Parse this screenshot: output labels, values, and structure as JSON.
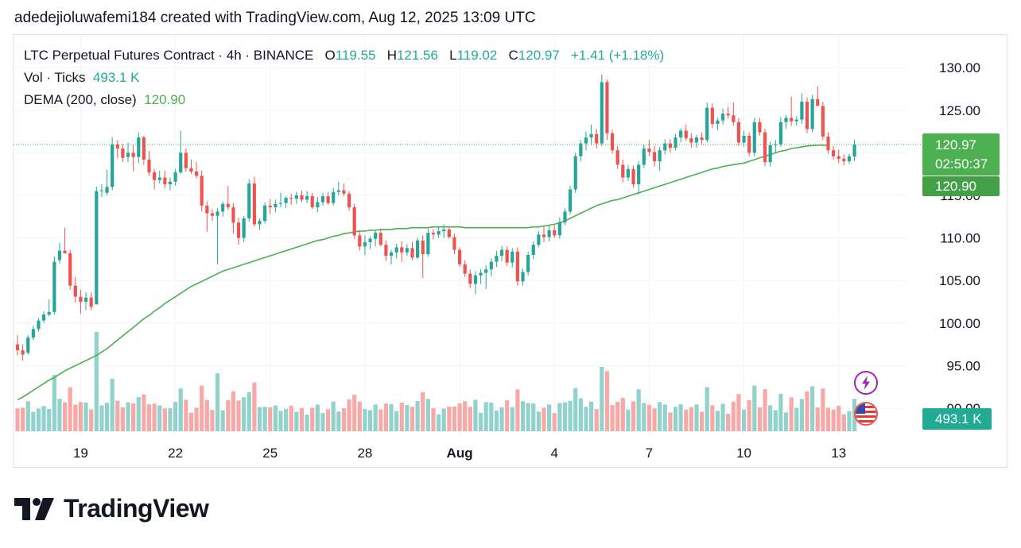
{
  "header": {
    "text": "adedejioluwafemi184 created with TradingView.com, Aug 12, 2025 13:09 UTC"
  },
  "legend": {
    "symbol": "LTC Perpetual Futures Contract · 4h · BINANCE",
    "open_label": "O",
    "open": "119.55",
    "high_label": "H",
    "high": "121.56",
    "low_label": "L",
    "low": "119.02",
    "close_label": "C",
    "close": "120.97",
    "change": "+1.41 (+1.18%)",
    "vol_label": "Vol · Ticks",
    "vol_value": "493.1 K",
    "dema_label": "DEMA (200, close)",
    "dema_value": "120.90"
  },
  "price_badges": {
    "last": "120.97",
    "countdown": "02:50:37",
    "dema": "120.90",
    "volume": "493.1 K"
  },
  "brand": {
    "name": "TradingView"
  },
  "colors": {
    "up": "#26a69a",
    "down": "#ef5350",
    "dema": "#4caf50",
    "vol_up": "#92d2cc",
    "vol_down": "#f7a9a7"
  },
  "chart_data": {
    "type": "candlestick",
    "y_ticks": [
      "130.00",
      "125.00",
      "120.00",
      "115.00",
      "110.00",
      "105.00",
      "100.00",
      "95.00",
      "90.00"
    ],
    "ylim": [
      88,
      133
    ],
    "x_ticks": [
      "19",
      "22",
      "25",
      "28",
      "Aug",
      "4",
      "7",
      "10",
      "13"
    ],
    "x_tick_index": [
      12,
      30,
      48,
      66,
      84,
      102,
      120,
      138,
      156
    ],
    "candles": [
      {
        "o": 97.5,
        "h": 98.6,
        "l": 96.2,
        "c": 96.8
      },
      {
        "o": 96.8,
        "h": 97.5,
        "l": 95.6,
        "c": 96.3
      },
      {
        "o": 96.5,
        "h": 98.6,
        "l": 96.3,
        "c": 98.3
      },
      {
        "o": 98.3,
        "h": 99.7,
        "l": 98.0,
        "c": 99.3
      },
      {
        "o": 99.3,
        "h": 100.6,
        "l": 99.0,
        "c": 100.3
      },
      {
        "o": 100.3,
        "h": 101.4,
        "l": 100.0,
        "c": 101.0
      },
      {
        "o": 101.0,
        "h": 102.8,
        "l": 100.8,
        "c": 101.3
      },
      {
        "o": 101.3,
        "h": 107.8,
        "l": 101.0,
        "c": 107.2
      },
      {
        "o": 107.4,
        "h": 109.4,
        "l": 107.0,
        "c": 108.5
      },
      {
        "o": 108.5,
        "h": 111.2,
        "l": 108.3,
        "c": 108.2
      },
      {
        "o": 108.2,
        "h": 108.6,
        "l": 103.9,
        "c": 104.4
      },
      {
        "o": 104.4,
        "h": 105.4,
        "l": 102.4,
        "c": 103.1
      },
      {
        "o": 103.1,
        "h": 103.9,
        "l": 101.1,
        "c": 102.5
      },
      {
        "o": 102.5,
        "h": 103.6,
        "l": 101.5,
        "c": 103.0
      },
      {
        "o": 103.0,
        "h": 103.6,
        "l": 101.5,
        "c": 101.9
      },
      {
        "o": 102.2,
        "h": 116.0,
        "l": 102.2,
        "c": 115.5
      },
      {
        "o": 115.5,
        "h": 116.3,
        "l": 114.8,
        "c": 115.6
      },
      {
        "o": 115.3,
        "h": 118.0,
        "l": 115.0,
        "c": 116.0
      },
      {
        "o": 116.0,
        "h": 121.8,
        "l": 115.6,
        "c": 121.0
      },
      {
        "o": 121.0,
        "h": 121.5,
        "l": 119.4,
        "c": 120.5
      },
      {
        "o": 120.5,
        "h": 121.0,
        "l": 118.9,
        "c": 119.4
      },
      {
        "o": 119.5,
        "h": 121.2,
        "l": 118.9,
        "c": 120.0
      },
      {
        "o": 120.0,
        "h": 121.0,
        "l": 117.8,
        "c": 119.5
      },
      {
        "o": 119.5,
        "h": 122.4,
        "l": 118.8,
        "c": 121.8
      },
      {
        "o": 121.8,
        "h": 122.0,
        "l": 118.6,
        "c": 119.2
      },
      {
        "o": 119.2,
        "h": 120.2,
        "l": 117.3,
        "c": 117.7
      },
      {
        "o": 117.7,
        "h": 118.1,
        "l": 115.7,
        "c": 116.8
      },
      {
        "o": 116.8,
        "h": 117.9,
        "l": 116.4,
        "c": 117.1
      },
      {
        "o": 117.1,
        "h": 117.9,
        "l": 115.8,
        "c": 116.3
      },
      {
        "o": 116.3,
        "h": 117.1,
        "l": 115.6,
        "c": 116.6
      },
      {
        "o": 116.6,
        "h": 118.1,
        "l": 116.2,
        "c": 117.7
      },
      {
        "o": 117.7,
        "h": 122.6,
        "l": 117.5,
        "c": 120.0
      },
      {
        "o": 120.0,
        "h": 120.5,
        "l": 117.8,
        "c": 118.2
      },
      {
        "o": 118.2,
        "h": 119.2,
        "l": 117.5,
        "c": 117.8
      },
      {
        "o": 117.8,
        "h": 118.9,
        "l": 117.0,
        "c": 117.3
      },
      {
        "o": 117.3,
        "h": 117.9,
        "l": 113.1,
        "c": 113.8
      },
      {
        "o": 113.8,
        "h": 114.3,
        "l": 110.7,
        "c": 112.9
      },
      {
        "o": 112.9,
        "h": 113.4,
        "l": 112.0,
        "c": 112.6
      },
      {
        "o": 112.6,
        "h": 113.5,
        "l": 106.9,
        "c": 113.1
      },
      {
        "o": 113.1,
        "h": 114.3,
        "l": 112.5,
        "c": 114.0
      },
      {
        "o": 114.0,
        "h": 116.1,
        "l": 113.3,
        "c": 113.6
      },
      {
        "o": 113.6,
        "h": 114.1,
        "l": 110.5,
        "c": 111.8
      },
      {
        "o": 111.8,
        "h": 112.4,
        "l": 109.2,
        "c": 110.0
      },
      {
        "o": 110.0,
        "h": 112.6,
        "l": 109.5,
        "c": 112.3
      },
      {
        "o": 112.3,
        "h": 116.9,
        "l": 111.9,
        "c": 116.4
      },
      {
        "o": 116.4,
        "h": 117.2,
        "l": 111.3,
        "c": 111.6
      },
      {
        "o": 111.6,
        "h": 112.3,
        "l": 110.9,
        "c": 112.0
      },
      {
        "o": 112.0,
        "h": 114.2,
        "l": 111.7,
        "c": 113.8
      },
      {
        "o": 113.8,
        "h": 114.6,
        "l": 112.8,
        "c": 113.6
      },
      {
        "o": 113.6,
        "h": 114.5,
        "l": 113.0,
        "c": 114.0
      },
      {
        "o": 114.0,
        "h": 115.3,
        "l": 113.6,
        "c": 114.1
      },
      {
        "o": 114.1,
        "h": 114.9,
        "l": 113.5,
        "c": 114.7
      },
      {
        "o": 114.7,
        "h": 115.2,
        "l": 113.9,
        "c": 114.6
      },
      {
        "o": 114.6,
        "h": 115.4,
        "l": 114.0,
        "c": 115.0
      },
      {
        "o": 115.0,
        "h": 115.6,
        "l": 114.2,
        "c": 114.5
      },
      {
        "o": 114.5,
        "h": 115.5,
        "l": 114.1,
        "c": 114.9
      },
      {
        "o": 114.9,
        "h": 115.3,
        "l": 113.4,
        "c": 113.6
      },
      {
        "o": 113.6,
        "h": 114.8,
        "l": 113.0,
        "c": 114.2
      },
      {
        "o": 114.2,
        "h": 115.3,
        "l": 113.8,
        "c": 114.9
      },
      {
        "o": 114.9,
        "h": 115.4,
        "l": 113.9,
        "c": 114.1
      },
      {
        "o": 114.1,
        "h": 115.9,
        "l": 113.8,
        "c": 115.4
      },
      {
        "o": 115.4,
        "h": 116.6,
        "l": 115.0,
        "c": 115.6
      },
      {
        "o": 115.6,
        "h": 116.4,
        "l": 114.9,
        "c": 115.2
      },
      {
        "o": 115.2,
        "h": 115.5,
        "l": 113.2,
        "c": 113.6
      },
      {
        "o": 113.6,
        "h": 114.0,
        "l": 109.9,
        "c": 110.3
      },
      {
        "o": 110.3,
        "h": 110.9,
        "l": 108.5,
        "c": 109.0
      },
      {
        "o": 109.0,
        "h": 110.3,
        "l": 108.0,
        "c": 109.5
      },
      {
        "o": 109.5,
        "h": 110.2,
        "l": 108.7,
        "c": 109.9
      },
      {
        "o": 109.9,
        "h": 110.8,
        "l": 109.0,
        "c": 110.6
      },
      {
        "o": 110.6,
        "h": 111.1,
        "l": 109.0,
        "c": 109.2
      },
      {
        "o": 109.2,
        "h": 109.7,
        "l": 107.3,
        "c": 107.9
      },
      {
        "o": 107.9,
        "h": 108.6,
        "l": 106.9,
        "c": 108.3
      },
      {
        "o": 108.3,
        "h": 109.3,
        "l": 107.6,
        "c": 108.9
      },
      {
        "o": 108.9,
        "h": 109.6,
        "l": 107.2,
        "c": 108.3
      },
      {
        "o": 108.3,
        "h": 109.3,
        "l": 107.9,
        "c": 108.8
      },
      {
        "o": 108.8,
        "h": 109.6,
        "l": 107.4,
        "c": 107.7
      },
      {
        "o": 107.7,
        "h": 110.0,
        "l": 107.5,
        "c": 109.7
      },
      {
        "o": 109.7,
        "h": 110.3,
        "l": 105.3,
        "c": 108.1
      },
      {
        "o": 108.1,
        "h": 111.1,
        "l": 107.8,
        "c": 110.6
      },
      {
        "o": 110.6,
        "h": 111.0,
        "l": 109.8,
        "c": 110.4
      },
      {
        "o": 110.4,
        "h": 111.3,
        "l": 110.0,
        "c": 110.8
      },
      {
        "o": 110.8,
        "h": 111.6,
        "l": 110.0,
        "c": 111.0
      },
      {
        "o": 111.0,
        "h": 111.2,
        "l": 109.9,
        "c": 110.1
      },
      {
        "o": 110.1,
        "h": 110.5,
        "l": 108.1,
        "c": 108.6
      },
      {
        "o": 108.6,
        "h": 108.9,
        "l": 106.6,
        "c": 106.9
      },
      {
        "o": 106.9,
        "h": 107.4,
        "l": 105.4,
        "c": 105.8
      },
      {
        "o": 105.8,
        "h": 106.3,
        "l": 104.1,
        "c": 104.6
      },
      {
        "o": 104.6,
        "h": 106.1,
        "l": 103.4,
        "c": 105.6
      },
      {
        "o": 105.6,
        "h": 106.3,
        "l": 104.6,
        "c": 105.9
      },
      {
        "o": 105.9,
        "h": 106.8,
        "l": 104.0,
        "c": 106.3
      },
      {
        "o": 106.3,
        "h": 107.6,
        "l": 105.5,
        "c": 107.2
      },
      {
        "o": 107.2,
        "h": 108.5,
        "l": 106.6,
        "c": 107.9
      },
      {
        "o": 107.9,
        "h": 109.1,
        "l": 107.3,
        "c": 108.6
      },
      {
        "o": 108.6,
        "h": 109.0,
        "l": 106.7,
        "c": 107.1
      },
      {
        "o": 107.1,
        "h": 108.8,
        "l": 106.5,
        "c": 108.4
      },
      {
        "o": 108.4,
        "h": 108.9,
        "l": 104.4,
        "c": 104.9
      },
      {
        "o": 104.9,
        "h": 106.4,
        "l": 104.4,
        "c": 106.0
      },
      {
        "o": 106.0,
        "h": 108.4,
        "l": 105.6,
        "c": 108.0
      },
      {
        "o": 108.0,
        "h": 109.6,
        "l": 107.5,
        "c": 109.2
      },
      {
        "o": 109.2,
        "h": 110.8,
        "l": 108.9,
        "c": 110.4
      },
      {
        "o": 110.4,
        "h": 111.4,
        "l": 109.5,
        "c": 110.1
      },
      {
        "o": 110.1,
        "h": 111.4,
        "l": 109.6,
        "c": 110.9
      },
      {
        "o": 110.9,
        "h": 111.5,
        "l": 110.0,
        "c": 110.3
      },
      {
        "o": 110.3,
        "h": 112.4,
        "l": 109.9,
        "c": 111.8
      },
      {
        "o": 111.8,
        "h": 113.5,
        "l": 111.5,
        "c": 113.1
      },
      {
        "o": 113.1,
        "h": 116.1,
        "l": 112.8,
        "c": 115.7
      },
      {
        "o": 115.7,
        "h": 120.0,
        "l": 115.3,
        "c": 119.6
      },
      {
        "o": 119.6,
        "h": 121.5,
        "l": 119.0,
        "c": 121.1
      },
      {
        "o": 121.1,
        "h": 122.5,
        "l": 120.3,
        "c": 121.8
      },
      {
        "o": 121.8,
        "h": 123.3,
        "l": 120.9,
        "c": 122.2
      },
      {
        "o": 122.2,
        "h": 122.8,
        "l": 120.5,
        "c": 121.1
      },
      {
        "o": 121.1,
        "h": 129.2,
        "l": 120.8,
        "c": 128.3
      },
      {
        "o": 128.3,
        "h": 128.6,
        "l": 121.5,
        "c": 122.3
      },
      {
        "o": 122.3,
        "h": 122.7,
        "l": 119.9,
        "c": 120.3
      },
      {
        "o": 120.3,
        "h": 120.8,
        "l": 118.1,
        "c": 118.6
      },
      {
        "o": 118.6,
        "h": 119.2,
        "l": 116.5,
        "c": 117.1
      },
      {
        "o": 117.1,
        "h": 118.6,
        "l": 116.7,
        "c": 118.1
      },
      {
        "o": 118.1,
        "h": 118.5,
        "l": 115.9,
        "c": 116.3
      },
      {
        "o": 116.3,
        "h": 119.0,
        "l": 115.1,
        "c": 118.6
      },
      {
        "o": 118.6,
        "h": 121.0,
        "l": 118.2,
        "c": 120.5
      },
      {
        "o": 120.5,
        "h": 121.5,
        "l": 119.6,
        "c": 120.1
      },
      {
        "o": 120.1,
        "h": 120.8,
        "l": 118.4,
        "c": 119.0
      },
      {
        "o": 119.0,
        "h": 120.7,
        "l": 117.9,
        "c": 120.3
      },
      {
        "o": 120.3,
        "h": 121.6,
        "l": 119.8,
        "c": 121.1
      },
      {
        "o": 121.1,
        "h": 121.6,
        "l": 120.0,
        "c": 120.6
      },
      {
        "o": 120.6,
        "h": 122.2,
        "l": 120.3,
        "c": 121.8
      },
      {
        "o": 121.8,
        "h": 122.9,
        "l": 121.2,
        "c": 122.6
      },
      {
        "o": 122.6,
        "h": 123.3,
        "l": 121.4,
        "c": 121.7
      },
      {
        "o": 121.7,
        "h": 122.3,
        "l": 120.6,
        "c": 121.2
      },
      {
        "o": 121.2,
        "h": 122.1,
        "l": 120.6,
        "c": 121.8
      },
      {
        "o": 121.8,
        "h": 122.4,
        "l": 121.0,
        "c": 121.5
      },
      {
        "o": 121.5,
        "h": 125.9,
        "l": 121.2,
        "c": 125.3
      },
      {
        "o": 125.3,
        "h": 125.8,
        "l": 122.9,
        "c": 123.4
      },
      {
        "o": 123.4,
        "h": 124.1,
        "l": 122.7,
        "c": 123.8
      },
      {
        "o": 123.8,
        "h": 125.2,
        "l": 123.3,
        "c": 124.6
      },
      {
        "o": 124.6,
        "h": 125.4,
        "l": 124.0,
        "c": 124.4
      },
      {
        "o": 124.4,
        "h": 125.9,
        "l": 123.2,
        "c": 123.6
      },
      {
        "o": 123.6,
        "h": 124.1,
        "l": 120.8,
        "c": 121.2
      },
      {
        "o": 121.2,
        "h": 122.6,
        "l": 120.7,
        "c": 122.0
      },
      {
        "o": 122.0,
        "h": 122.4,
        "l": 119.6,
        "c": 120.0
      },
      {
        "o": 120.0,
        "h": 124.1,
        "l": 119.6,
        "c": 123.6
      },
      {
        "o": 123.6,
        "h": 124.1,
        "l": 122.0,
        "c": 122.4
      },
      {
        "o": 122.4,
        "h": 122.8,
        "l": 118.4,
        "c": 118.9
      },
      {
        "o": 118.9,
        "h": 121.3,
        "l": 118.4,
        "c": 120.9
      },
      {
        "o": 120.9,
        "h": 121.5,
        "l": 120.0,
        "c": 121.0
      },
      {
        "o": 121.0,
        "h": 124.2,
        "l": 120.7,
        "c": 123.6
      },
      {
        "o": 123.6,
        "h": 124.4,
        "l": 122.8,
        "c": 124.1
      },
      {
        "o": 124.1,
        "h": 126.6,
        "l": 123.2,
        "c": 123.7
      },
      {
        "o": 123.7,
        "h": 124.3,
        "l": 123.2,
        "c": 123.9
      },
      {
        "o": 123.9,
        "h": 127.0,
        "l": 123.4,
        "c": 126.0
      },
      {
        "o": 126.0,
        "h": 126.5,
        "l": 122.3,
        "c": 122.8
      },
      {
        "o": 122.8,
        "h": 126.8,
        "l": 122.4,
        "c": 126.3
      },
      {
        "o": 126.3,
        "h": 127.8,
        "l": 125.7,
        "c": 125.5
      },
      {
        "o": 125.5,
        "h": 126.0,
        "l": 121.5,
        "c": 121.9
      },
      {
        "o": 121.9,
        "h": 122.4,
        "l": 119.9,
        "c": 120.3
      },
      {
        "o": 120.3,
        "h": 120.8,
        "l": 119.2,
        "c": 119.6
      },
      {
        "o": 119.6,
        "h": 120.4,
        "l": 118.8,
        "c": 119.3
      },
      {
        "o": 119.3,
        "h": 119.8,
        "l": 118.5,
        "c": 119.0
      },
      {
        "o": 119.0,
        "h": 119.9,
        "l": 118.7,
        "c": 119.6
      },
      {
        "o": 119.55,
        "h": 121.56,
        "l": 119.02,
        "c": 120.97
      }
    ],
    "dema": [
      91.0,
      91.3,
      91.7,
      92.1,
      92.5,
      92.9,
      93.3,
      93.6,
      94.0,
      94.4,
      94.7,
      95.0,
      95.3,
      95.6,
      95.9,
      96.2,
      96.6,
      97.0,
      97.5,
      98.0,
      98.5,
      99.0,
      99.5,
      100.0,
      100.5,
      100.9,
      101.4,
      101.8,
      102.3,
      102.7,
      103.1,
      103.5,
      103.9,
      104.3,
      104.6,
      104.9,
      105.2,
      105.5,
      105.8,
      106.1,
      106.3,
      106.5,
      106.7,
      106.9,
      107.1,
      107.3,
      107.5,
      107.7,
      107.9,
      108.1,
      108.3,
      108.5,
      108.7,
      108.9,
      109.1,
      109.3,
      109.5,
      109.7,
      109.8,
      110.0,
      110.2,
      110.3,
      110.5,
      110.6,
      110.7,
      110.8,
      110.8,
      110.9,
      110.9,
      111.0,
      111.0,
      111.0,
      111.1,
      111.1,
      111.1,
      111.2,
      111.2,
      111.2,
      111.2,
      111.3,
      111.3,
      111.3,
      111.3,
      111.3,
      111.3,
      111.2,
      111.2,
      111.2,
      111.2,
      111.2,
      111.2,
      111.2,
      111.2,
      111.2,
      111.2,
      111.2,
      111.2,
      111.2,
      111.3,
      111.3,
      111.4,
      111.5,
      111.6,
      111.8,
      112.0,
      112.3,
      112.6,
      112.9,
      113.2,
      113.5,
      113.8,
      114.0,
      114.2,
      114.4,
      114.5,
      114.7,
      114.9,
      115.1,
      115.3,
      115.5,
      115.7,
      115.9,
      116.1,
      116.3,
      116.5,
      116.7,
      116.9,
      117.1,
      117.3,
      117.5,
      117.7,
      117.9,
      118.1,
      118.2,
      118.4,
      118.5,
      118.6,
      118.7,
      118.8,
      119.0,
      119.2,
      119.4,
      119.6,
      119.8,
      120.0,
      120.2,
      120.3,
      120.5,
      120.6,
      120.7,
      120.8,
      120.85,
      120.9,
      120.9,
      120.9
    ],
    "volume_label": "Vol · Ticks",
    "volume_last": "493.1 K"
  }
}
